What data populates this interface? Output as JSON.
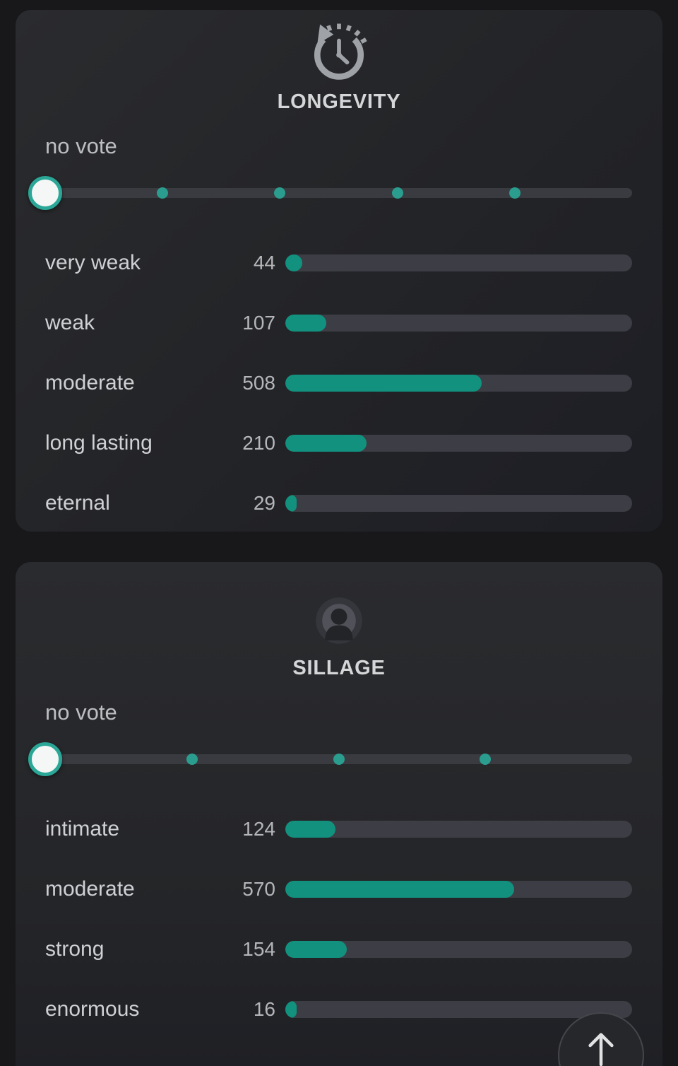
{
  "sections": [
    {
      "title": "LONGEVITY",
      "no_vote_label": "no vote",
      "slider": {
        "selected": "no vote",
        "dot_positions_pct": [
          20,
          40,
          60,
          80
        ]
      },
      "rows": [
        {
          "label": "very weak",
          "value": 44,
          "percent": 4.9
        },
        {
          "label": "weak",
          "value": 107,
          "percent": 11.9
        },
        {
          "label": "moderate",
          "value": 508,
          "percent": 56.6
        },
        {
          "label": "long lasting",
          "value": 210,
          "percent": 23.4
        },
        {
          "label": "eternal",
          "value": 29,
          "percent": 3.2
        }
      ]
    },
    {
      "title": "SILLAGE",
      "no_vote_label": "no vote",
      "slider": {
        "selected": "no vote",
        "dot_positions_pct": [
          25,
          50,
          75
        ]
      },
      "rows": [
        {
          "label": "intimate",
          "value": 124,
          "percent": 14.4
        },
        {
          "label": "moderate",
          "value": 570,
          "percent": 66.0
        },
        {
          "label": "strong",
          "value": 154,
          "percent": 17.8
        },
        {
          "label": "enormous",
          "value": 16,
          "percent": 1.9
        }
      ]
    }
  ],
  "colors": {
    "bar_fill": "#12917f",
    "slider_dot": "#2a9d8f",
    "thumb_ring": "#2aa797",
    "card_background": "#242528",
    "page_background": "#18181b"
  }
}
